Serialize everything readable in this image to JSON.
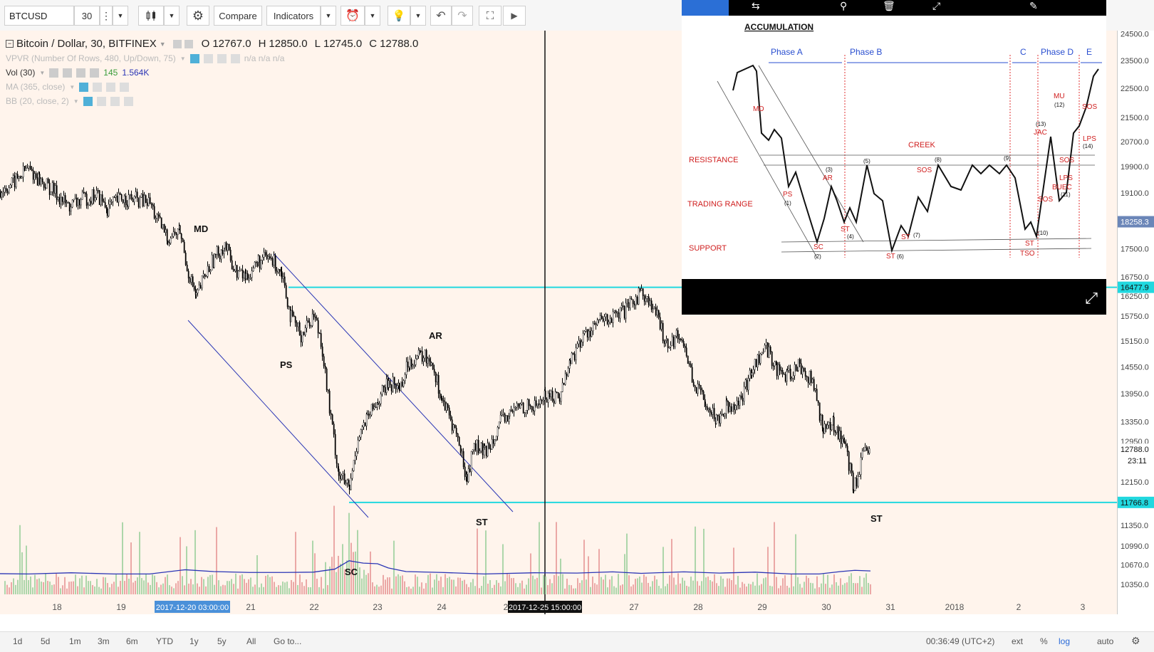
{
  "toolbar": {
    "symbol": "BTCUSD",
    "interval": "30",
    "compare_label": "Compare",
    "indicators_label": "Indicators"
  },
  "legend": {
    "title": "Bitcoin / Dollar, 30, BITFINEX",
    "open_label": "O",
    "open": "12767.0",
    "high_label": "H",
    "high": "12850.0",
    "low_label": "L",
    "low": "12745.0",
    "close_label": "C",
    "close": "12788.0",
    "vpvr": "VPVR (Number Of Rows, 480, Up/Down, 75)",
    "vpvr_values": "n/a  n/a  n/a",
    "vol": "Vol (30)",
    "vol_value1": "145",
    "vol_value2": "1.564K",
    "ma": "MA (365, close)",
    "bb": "BB (20, close, 2)"
  },
  "bottom": {
    "ranges": [
      "1d",
      "5d",
      "1m",
      "3m",
      "6m",
      "YTD",
      "1y",
      "5y",
      "All"
    ],
    "goto": "Go to...",
    "clock": "00:36:49 (UTC+2)",
    "ext": "ext",
    "pct": "%",
    "log": "log",
    "auto": "auto"
  },
  "popup": {
    "title": "ACCUMULATION",
    "phases": [
      "Phase A",
      "Phase B",
      "C",
      "Phase D",
      "E"
    ],
    "left_labels": [
      "RESISTANCE",
      "TRADING RANGE",
      "SUPPORT"
    ],
    "creek": "CREEK",
    "events": [
      "MD",
      "PS",
      "(1)",
      "SC",
      "(2)",
      "AR",
      "(3)",
      "ST",
      "(4)",
      "(5)",
      "ST",
      "(6)",
      "ST",
      "(7)",
      "SOS",
      "(8)",
      "(9)",
      "ST",
      "TSO",
      "(10)",
      "SOS",
      "(11)",
      "BUEC",
      "LPS",
      "JAC",
      "(13)",
      "MU",
      "(12)",
      "SOS",
      "LPS",
      "(14)",
      "SOS"
    ]
  },
  "chart_data": {
    "type": "candlestick",
    "title": "Bitcoin / Dollar, 30, BITFINEX",
    "x_tick_labels": [
      "18",
      "19",
      "21",
      "22",
      "23",
      "24",
      "2",
      "27",
      "28",
      "29",
      "30",
      "31",
      "2018",
      "2",
      "3"
    ],
    "crosshair_x_label": "2017-12-25 15:00:00",
    "highlight_x_label": "2017-12-20 03:00:00",
    "y_tick_labels": [
      "24500.0",
      "23500.0",
      "22500.0",
      "21500.0",
      "20700.0",
      "19900.0",
      "19100.0",
      "17500.0",
      "16750.0",
      "16250.0",
      "15750.0",
      "15150.0",
      "14550.0",
      "13950.0",
      "13350.0",
      "12950.0",
      "12150.0",
      "11350.0",
      "10990.0",
      "10670.0",
      "10350.0"
    ],
    "y_badges": [
      {
        "label": "18258.3",
        "color": "#6b86b8"
      },
      {
        "label": "16477.9",
        "color": "#21d8df"
      },
      {
        "label": "12788.0",
        "color": "#ffffff"
      },
      {
        "label": "11766.8",
        "color": "#21d8df"
      }
    ],
    "countdown_label": "23:11",
    "horizontal_lines": [
      {
        "price": 16477.9,
        "color": "#21d8df"
      },
      {
        "price": 11766.8,
        "color": "#21d8df"
      }
    ],
    "annotations": [
      "MD",
      "PS",
      "AR",
      "SC",
      "ST",
      "ST"
    ],
    "hidden_text": "SOS",
    "price_path": [
      [
        0,
        19150
      ],
      [
        18,
        19400
      ],
      [
        38,
        19850
      ],
      [
        55,
        19500
      ],
      [
        75,
        19150
      ],
      [
        95,
        18700
      ],
      [
        115,
        18900
      ],
      [
        135,
        19050
      ],
      [
        150,
        18650
      ],
      [
        170,
        18950
      ],
      [
        190,
        18900
      ],
      [
        210,
        18800
      ],
      [
        220,
        18300
      ],
      [
        235,
        17800
      ],
      [
        252,
        18000
      ],
      [
        262,
        17000
      ],
      [
        275,
        16200
      ],
      [
        285,
        16700
      ],
      [
        300,
        17250
      ],
      [
        315,
        17600
      ],
      [
        330,
        16900
      ],
      [
        345,
        16750
      ],
      [
        362,
        17150
      ],
      [
        378,
        17250
      ],
      [
        395,
        16900
      ],
      [
        408,
        15700
      ],
      [
        422,
        15300
      ],
      [
        440,
        15800
      ],
      [
        450,
        15200
      ],
      [
        462,
        13600
      ],
      [
        475,
        12300
      ],
      [
        490,
        12000
      ],
      [
        502,
        13050
      ],
      [
        515,
        13400
      ],
      [
        530,
        13800
      ],
      [
        545,
        14200
      ],
      [
        560,
        14100
      ],
      [
        575,
        14700
      ],
      [
        590,
        14800
      ],
      [
        605,
        14700
      ],
      [
        620,
        13800
      ],
      [
        640,
        13100
      ],
      [
        655,
        12200
      ],
      [
        665,
        12900
      ],
      [
        680,
        12700
      ],
      [
        700,
        13300
      ],
      [
        715,
        13500
      ],
      [
        730,
        13700
      ],
      [
        748,
        13650
      ],
      [
        765,
        13900
      ],
      [
        785,
        13900
      ],
      [
        800,
        14700
      ],
      [
        820,
        15300
      ],
      [
        840,
        15600
      ],
      [
        860,
        15700
      ],
      [
        880,
        15900
      ],
      [
        900,
        16400
      ],
      [
        920,
        15800
      ],
      [
        935,
        15100
      ],
      [
        955,
        15300
      ],
      [
        975,
        14100
      ],
      [
        990,
        13800
      ],
      [
        1005,
        13400
      ],
      [
        1020,
        13700
      ],
      [
        1040,
        13800
      ],
      [
        1055,
        14500
      ],
      [
        1075,
        15000
      ],
      [
        1090,
        14500
      ],
      [
        1105,
        14300
      ],
      [
        1120,
        14600
      ],
      [
        1140,
        14200
      ],
      [
        1155,
        13200
      ],
      [
        1170,
        13300
      ],
      [
        1185,
        12900
      ],
      [
        1198,
        12000
      ],
      [
        1210,
        12600
      ],
      [
        1222,
        12850
      ]
    ],
    "volume_path": [
      [
        0,
        10525
      ],
      [
        40,
        10520
      ],
      [
        100,
        10540
      ],
      [
        160,
        10520
      ],
      [
        210,
        10520
      ],
      [
        260,
        10590
      ],
      [
        300,
        10560
      ],
      [
        350,
        10545
      ],
      [
        400,
        10545
      ],
      [
        440,
        10550
      ],
      [
        470,
        10600
      ],
      [
        490,
        10740
      ],
      [
        510,
        10700
      ],
      [
        530,
        10690
      ],
      [
        545,
        10620
      ],
      [
        570,
        10560
      ],
      [
        620,
        10545
      ],
      [
        680,
        10520
      ],
      [
        750,
        10540
      ],
      [
        810,
        10535
      ],
      [
        860,
        10555
      ],
      [
        900,
        10530
      ],
      [
        960,
        10555
      ],
      [
        1010,
        10535
      ],
      [
        1060,
        10550
      ],
      [
        1110,
        10520
      ],
      [
        1150,
        10520
      ],
      [
        1180,
        10560
      ],
      [
        1200,
        10580
      ],
      [
        1222,
        10570
      ]
    ],
    "ylim": [
      10250,
      24900
    ],
    "scale": "log"
  }
}
